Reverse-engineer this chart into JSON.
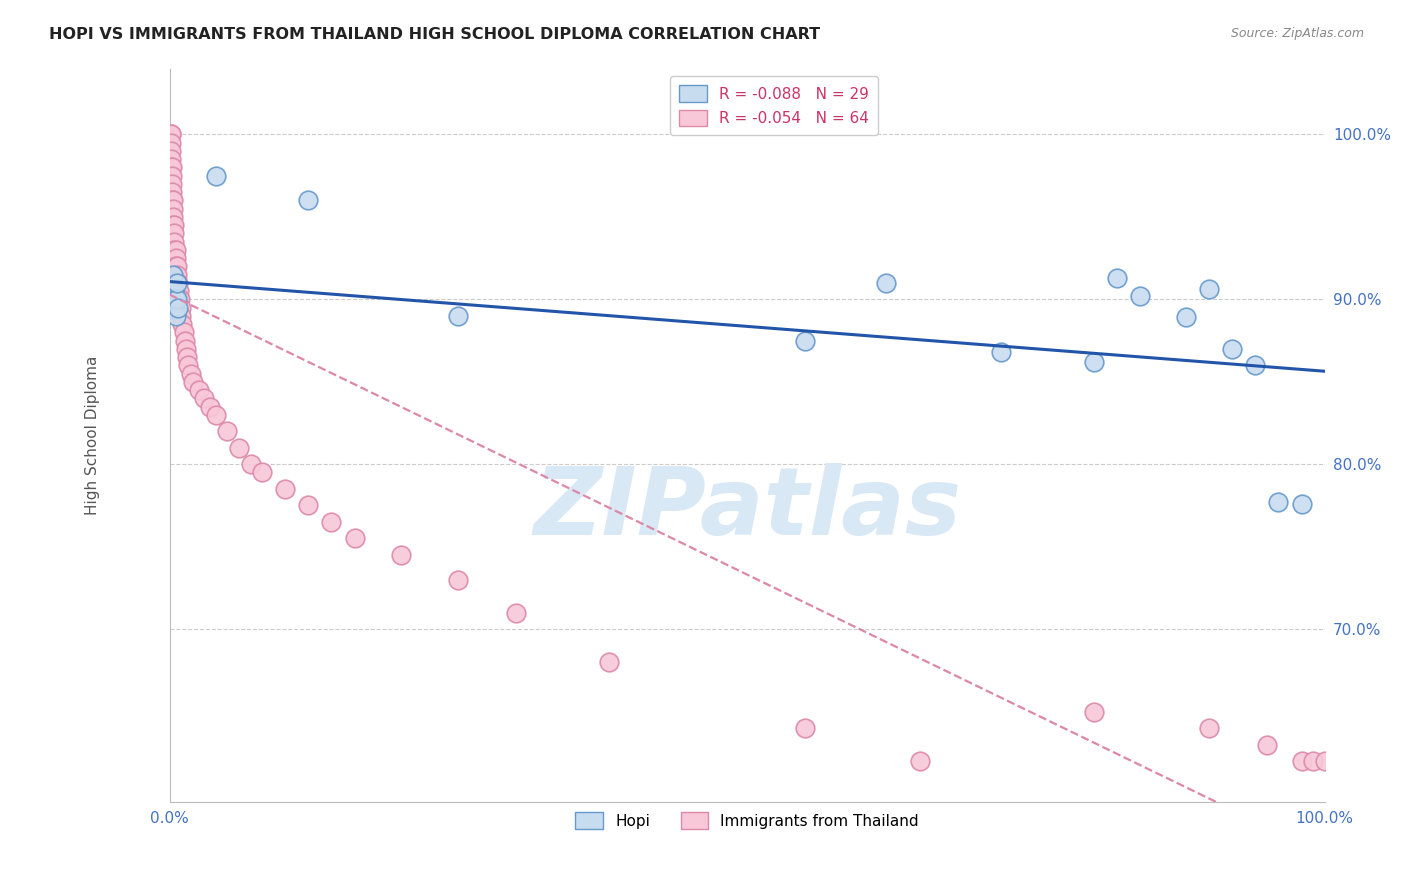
{
  "title": "HOPI VS IMMIGRANTS FROM THAILAND HIGH SCHOOL DIPLOMA CORRELATION CHART",
  "source": "Source: ZipAtlas.com",
  "ylabel": "High School Diploma",
  "hopi_x": [
    0.001,
    0.001,
    0.002,
    0.002,
    0.003,
    0.003,
    0.003,
    0.004,
    0.004,
    0.005,
    0.005,
    0.006,
    0.006,
    0.007,
    0.04,
    0.12,
    0.25,
    0.55,
    0.62,
    0.72,
    0.8,
    0.82,
    0.84,
    0.88,
    0.9,
    0.92,
    0.94,
    0.96,
    0.98
  ],
  "hopi_y": [
    0.895,
    0.905,
    0.895,
    0.91,
    0.895,
    0.905,
    0.915,
    0.895,
    0.905,
    0.9,
    0.89,
    0.9,
    0.91,
    0.895,
    0.975,
    0.96,
    0.89,
    0.875,
    0.91,
    0.868,
    0.862,
    0.913,
    0.902,
    0.889,
    0.906,
    0.87,
    0.86,
    0.777,
    0.776
  ],
  "thai_x": [
    0.001,
    0.001,
    0.001,
    0.001,
    0.001,
    0.001,
    0.002,
    0.002,
    0.002,
    0.002,
    0.002,
    0.003,
    0.003,
    0.003,
    0.003,
    0.004,
    0.004,
    0.004,
    0.004,
    0.005,
    0.005,
    0.005,
    0.006,
    0.006,
    0.006,
    0.007,
    0.007,
    0.008,
    0.008,
    0.009,
    0.01,
    0.01,
    0.011,
    0.012,
    0.013,
    0.014,
    0.015,
    0.016,
    0.018,
    0.02,
    0.025,
    0.03,
    0.035,
    0.04,
    0.05,
    0.06,
    0.07,
    0.08,
    0.1,
    0.12,
    0.14,
    0.16,
    0.2,
    0.25,
    0.3,
    0.38,
    0.55,
    0.65,
    0.8,
    0.9,
    0.95,
    0.98,
    0.99,
    1.0
  ],
  "thai_y": [
    1.0,
    1.0,
    0.995,
    0.99,
    0.985,
    0.98,
    0.98,
    0.975,
    0.97,
    0.965,
    0.96,
    0.96,
    0.955,
    0.95,
    0.945,
    0.945,
    0.94,
    0.935,
    0.93,
    0.93,
    0.925,
    0.92,
    0.92,
    0.915,
    0.91,
    0.91,
    0.905,
    0.905,
    0.9,
    0.9,
    0.895,
    0.89,
    0.885,
    0.88,
    0.875,
    0.87,
    0.865,
    0.86,
    0.855,
    0.85,
    0.845,
    0.84,
    0.835,
    0.83,
    0.82,
    0.81,
    0.8,
    0.795,
    0.785,
    0.775,
    0.765,
    0.755,
    0.745,
    0.73,
    0.71,
    0.68,
    0.64,
    0.62,
    0.65,
    0.64,
    0.63,
    0.62,
    0.62,
    0.62
  ],
  "hopi_color": "#c8dcf0",
  "hopi_edge_color": "#6699cc",
  "thai_color": "#f8c8d8",
  "thai_edge_color": "#dd88a8",
  "trend_hopi_color": "#2255aa",
  "trend_thai_color": "#dd88a8",
  "watermark_text": "ZIPatlas",
  "watermark_color": "#d8e8f4",
  "background_color": "#ffffff",
  "grid_color": "#cccccc",
  "xlim": [
    0.0,
    1.0
  ],
  "ylim": [
    0.595,
    1.04
  ],
  "yticks": [
    0.7,
    0.8,
    0.9,
    1.0
  ],
  "xticks": [
    0.0,
    1.0
  ],
  "tick_color": "#4472c4"
}
